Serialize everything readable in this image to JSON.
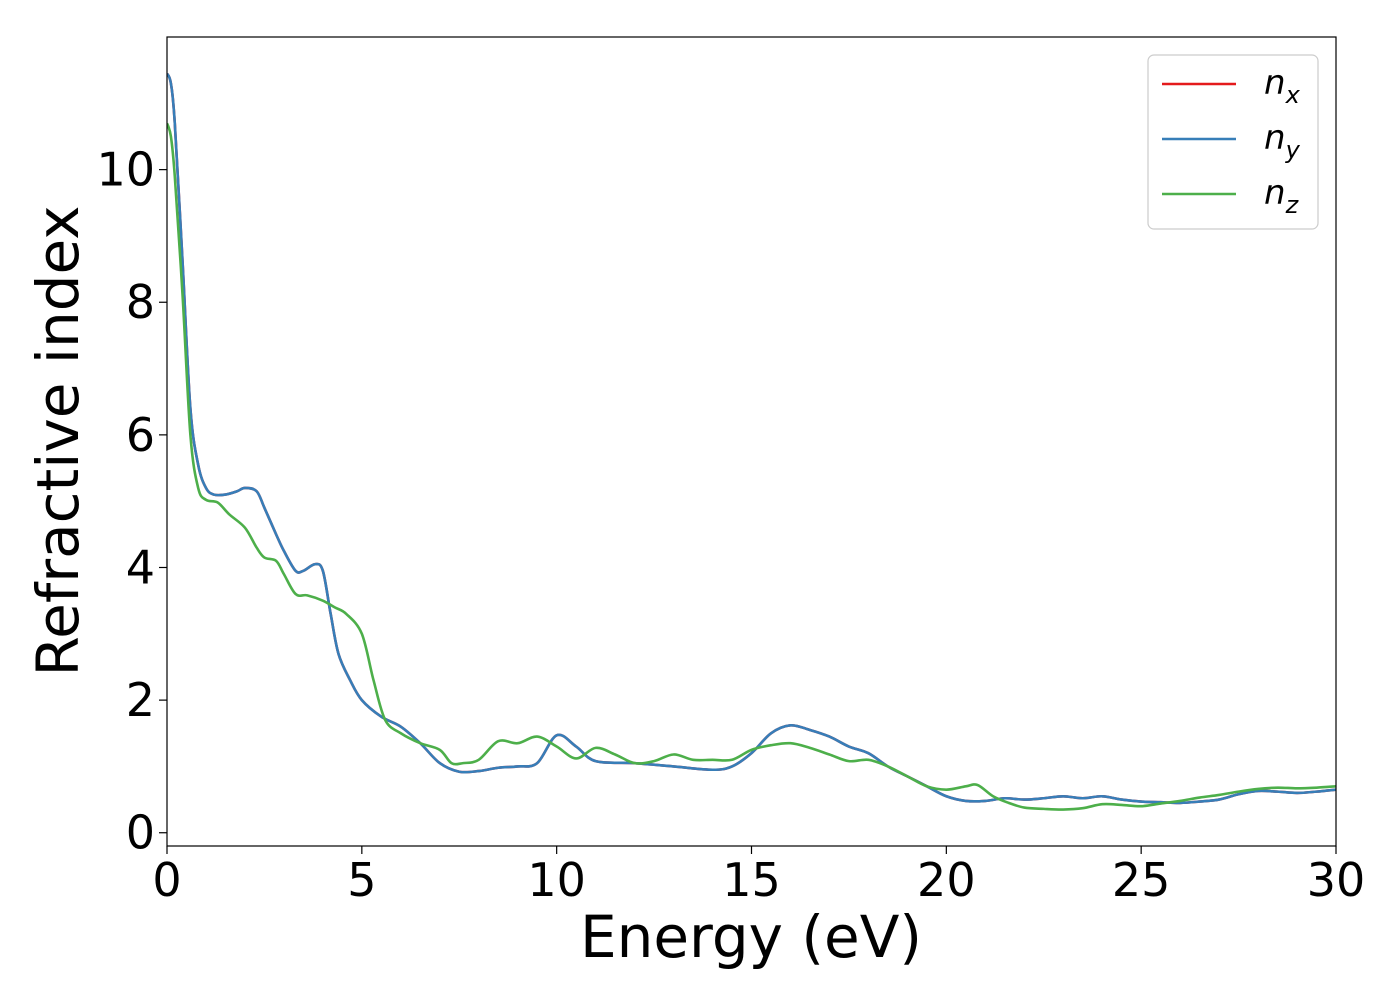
{
  "chart_data": {
    "type": "line",
    "title": "",
    "xlabel": "Energy (eV)",
    "ylabel": "Refractive index",
    "xlim": [
      0,
      30
    ],
    "ylim": [
      -0.2,
      12
    ],
    "xticks": [
      0,
      5,
      10,
      15,
      20,
      25,
      30
    ],
    "xtick_labels": [
      "0",
      "5",
      "10",
      "15",
      "20",
      "25",
      "30"
    ],
    "yticks": [
      0,
      2,
      4,
      6,
      8,
      10
    ],
    "ytick_labels": [
      "0",
      "2",
      "4",
      "6",
      "8",
      "10"
    ],
    "grid": false,
    "legend_position": "top-right",
    "series": [
      {
        "name": "n_x",
        "label_main": "n",
        "label_sub": "x",
        "color": "#e41a1c",
        "x": [
          0,
          0.1,
          0.2,
          0.4,
          0.6,
          0.8,
          1.0,
          1.2,
          1.5,
          1.8,
          2.0,
          2.3,
          2.5,
          2.8,
          3.0,
          3.3,
          3.5,
          3.8,
          4.0,
          4.2,
          4.4,
          4.7,
          5.0,
          5.5,
          6.0,
          6.5,
          7.0,
          7.5,
          8.0,
          8.5,
          9.0,
          9.5,
          10.0,
          10.5,
          11.0,
          12.0,
          13.0,
          14.0,
          14.5,
          15.0,
          15.5,
          16.0,
          16.5,
          17.0,
          17.5,
          18.0,
          18.5,
          19.0,
          19.5,
          20.0,
          20.5,
          21.0,
          21.5,
          22.0,
          22.5,
          23.0,
          23.5,
          24.0,
          24.5,
          25.0,
          25.5,
          26.0,
          26.5,
          27.0,
          27.5,
          28.0,
          28.5,
          29.0,
          29.5,
          30.0
        ],
        "y": [
          11.45,
          11.3,
          10.7,
          8.6,
          6.4,
          5.55,
          5.2,
          5.1,
          5.1,
          5.15,
          5.2,
          5.15,
          4.9,
          4.5,
          4.25,
          3.95,
          3.95,
          4.05,
          3.95,
          3.3,
          2.7,
          2.3,
          2.0,
          1.75,
          1.6,
          1.35,
          1.05,
          0.92,
          0.93,
          0.98,
          1.0,
          1.05,
          1.47,
          1.3,
          1.08,
          1.05,
          1.0,
          0.95,
          1.0,
          1.2,
          1.5,
          1.62,
          1.55,
          1.45,
          1.3,
          1.2,
          1.0,
          0.85,
          0.7,
          0.55,
          0.48,
          0.48,
          0.52,
          0.5,
          0.52,
          0.55,
          0.52,
          0.55,
          0.5,
          0.47,
          0.46,
          0.45,
          0.47,
          0.5,
          0.58,
          0.63,
          0.62,
          0.6,
          0.62,
          0.65
        ]
      },
      {
        "name": "n_y",
        "label_main": "n",
        "label_sub": "y",
        "color": "#377eb8",
        "x": [
          0,
          0.1,
          0.2,
          0.4,
          0.6,
          0.8,
          1.0,
          1.2,
          1.5,
          1.8,
          2.0,
          2.3,
          2.5,
          2.8,
          3.0,
          3.3,
          3.5,
          3.8,
          4.0,
          4.2,
          4.4,
          4.7,
          5.0,
          5.5,
          6.0,
          6.5,
          7.0,
          7.5,
          8.0,
          8.5,
          9.0,
          9.5,
          10.0,
          10.5,
          11.0,
          12.0,
          13.0,
          14.0,
          14.5,
          15.0,
          15.5,
          16.0,
          16.5,
          17.0,
          17.5,
          18.0,
          18.5,
          19.0,
          19.5,
          20.0,
          20.5,
          21.0,
          21.5,
          22.0,
          22.5,
          23.0,
          23.5,
          24.0,
          24.5,
          25.0,
          25.5,
          26.0,
          26.5,
          27.0,
          27.5,
          28.0,
          28.5,
          29.0,
          29.5,
          30.0
        ],
        "y": [
          11.45,
          11.3,
          10.7,
          8.6,
          6.4,
          5.55,
          5.2,
          5.1,
          5.1,
          5.15,
          5.2,
          5.15,
          4.9,
          4.5,
          4.25,
          3.95,
          3.95,
          4.05,
          3.95,
          3.3,
          2.7,
          2.3,
          2.0,
          1.75,
          1.6,
          1.35,
          1.05,
          0.92,
          0.93,
          0.98,
          1.0,
          1.05,
          1.47,
          1.3,
          1.08,
          1.05,
          1.0,
          0.95,
          1.0,
          1.2,
          1.5,
          1.62,
          1.55,
          1.45,
          1.3,
          1.2,
          1.0,
          0.85,
          0.7,
          0.55,
          0.48,
          0.48,
          0.52,
          0.5,
          0.52,
          0.55,
          0.52,
          0.55,
          0.5,
          0.47,
          0.46,
          0.45,
          0.47,
          0.5,
          0.58,
          0.63,
          0.62,
          0.6,
          0.62,
          0.65
        ]
      },
      {
        "name": "n_z",
        "label_main": "n",
        "label_sub": "z",
        "color": "#4daf4a",
        "x": [
          0,
          0.1,
          0.2,
          0.4,
          0.6,
          0.8,
          1.0,
          1.3,
          1.6,
          2.0,
          2.3,
          2.5,
          2.8,
          3.0,
          3.3,
          3.6,
          4.0,
          4.3,
          4.6,
          5.0,
          5.3,
          5.6,
          6.0,
          6.5,
          7.0,
          7.3,
          7.6,
          8.0,
          8.5,
          9.0,
          9.5,
          10.0,
          10.5,
          11.0,
          11.5,
          12.0,
          12.5,
          13.0,
          13.5,
          14.0,
          14.5,
          15.0,
          15.5,
          16.0,
          16.5,
          17.0,
          17.5,
          18.0,
          18.5,
          19.0,
          19.5,
          20.0,
          20.5,
          20.8,
          21.2,
          21.6,
          22.0,
          22.5,
          23.0,
          23.5,
          24.0,
          24.5,
          25.0,
          25.5,
          26.0,
          26.5,
          27.0,
          27.5,
          28.0,
          28.5,
          29.0,
          29.5,
          30.0
        ],
        "y": [
          10.7,
          10.5,
          9.9,
          8.1,
          6.0,
          5.2,
          5.02,
          4.98,
          4.8,
          4.6,
          4.3,
          4.15,
          4.1,
          3.9,
          3.6,
          3.58,
          3.5,
          3.4,
          3.3,
          3.0,
          2.3,
          1.7,
          1.5,
          1.35,
          1.25,
          1.05,
          1.05,
          1.1,
          1.38,
          1.35,
          1.45,
          1.3,
          1.12,
          1.28,
          1.18,
          1.05,
          1.08,
          1.18,
          1.1,
          1.1,
          1.1,
          1.25,
          1.32,
          1.35,
          1.28,
          1.18,
          1.08,
          1.1,
          1.0,
          0.85,
          0.7,
          0.65,
          0.7,
          0.72,
          0.55,
          0.45,
          0.38,
          0.36,
          0.35,
          0.37,
          0.43,
          0.42,
          0.4,
          0.44,
          0.48,
          0.53,
          0.57,
          0.62,
          0.66,
          0.68,
          0.67,
          0.68,
          0.7
        ]
      }
    ]
  }
}
